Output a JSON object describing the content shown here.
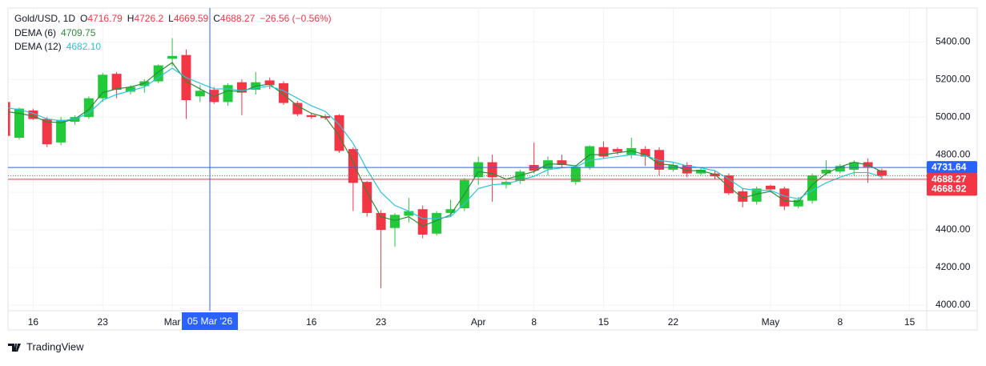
{
  "chart_data": {
    "type": "candlestick",
    "title": "Gold/USD, 1D",
    "ohlc_labels": [
      "O",
      "H",
      "L",
      "C"
    ],
    "change": "−26.56 (−0.56%)",
    "up_color": "#22c93a",
    "down_color": "#f23645",
    "categories": [
      null,
      null,
      "16",
      null,
      null,
      null,
      null,
      "23",
      null,
      null,
      null,
      null,
      "Mar",
      null,
      null,
      null,
      null,
      null,
      null,
      null,
      null,
      null,
      "16",
      null,
      null,
      null,
      null,
      "23",
      null,
      null,
      null,
      null,
      null,
      null,
      "Apr",
      null,
      null,
      null,
      "8",
      null,
      null,
      null,
      null,
      "15",
      null,
      null,
      null,
      null,
      "22",
      null,
      null,
      null,
      null,
      null,
      null,
      "May",
      null,
      null,
      null,
      null,
      "8",
      null,
      null,
      null,
      null,
      "15"
    ],
    "open": [
      5080,
      4890,
      5035,
      4990,
      4865,
      4975,
      5000,
      5100,
      5230,
      5135,
      5165,
      5190,
      5310,
      5330,
      5110,
      5145,
      5080,
      5185,
      5145,
      5195,
      5180,
      5075,
      5010,
      5005,
      5010,
      4830,
      4655,
      4490,
      4410,
      4475,
      4510,
      4380,
      4490,
      4515,
      4680,
      4760,
      4640,
      4660,
      4745,
      4725,
      4770,
      4655,
      4735,
      4840,
      4830,
      4800,
      4830,
      4825,
      4720,
      4745,
      4700,
      4700,
      4690,
      4605,
      4550,
      4635,
      4620,
      4525,
      4555,
      4700,
      4710,
      4720,
      4760,
      4716.79,
      null,
      null
    ],
    "high": [
      5100,
      5050,
      5045,
      5000,
      5000,
      5010,
      5110,
      5235,
      5240,
      5170,
      5200,
      5280,
      5420,
      5360,
      5170,
      5160,
      5180,
      5200,
      5240,
      5210,
      5190,
      5085,
      5020,
      5015,
      5015,
      4840,
      4660,
      4505,
      4490,
      4570,
      4530,
      4500,
      4560,
      4675,
      4790,
      4800,
      4665,
      4720,
      4865,
      4790,
      4800,
      4745,
      4850,
      4870,
      4840,
      4890,
      4845,
      4840,
      4760,
      4760,
      4730,
      4715,
      4700,
      4620,
      4630,
      4640,
      4630,
      4575,
      4700,
      4770,
      4750,
      4770,
      4780,
      4726.2,
      null,
      null
    ],
    "low": [
      4880,
      4880,
      4985,
      4840,
      4850,
      4960,
      4990,
      5080,
      5100,
      5120,
      5130,
      5180,
      5270,
      4990,
      5080,
      5070,
      5060,
      5010,
      5120,
      5150,
      5065,
      5005,
      4990,
      4985,
      4810,
      4500,
      4470,
      4090,
      4310,
      4440,
      4355,
      4370,
      4470,
      4500,
      4640,
      4550,
      4620,
      4645,
      4700,
      4690,
      4730,
      4640,
      4720,
      4780,
      4800,
      4780,
      4740,
      4690,
      4710,
      4680,
      4690,
      4670,
      4585,
      4520,
      4535,
      4600,
      4505,
      4515,
      4540,
      4690,
      4700,
      4690,
      4650,
      4669.59,
      null,
      null
    ],
    "close": [
      4900,
      5045,
      4990,
      4855,
      4985,
      5000,
      5100,
      5225,
      5145,
      5160,
      5190,
      5275,
      5325,
      5090,
      5140,
      5080,
      5170,
      5130,
      5185,
      5170,
      5075,
      5015,
      5000,
      4995,
      4820,
      4650,
      4490,
      4400,
      4480,
      4500,
      4375,
      4490,
      4510,
      4665,
      4760,
      4680,
      4655,
      4710,
      4715,
      4770,
      4745,
      4735,
      4845,
      4790,
      4815,
      4835,
      4790,
      4720,
      4745,
      4700,
      4720,
      4685,
      4595,
      4550,
      4620,
      4615,
      4525,
      4560,
      4690,
      4720,
      4740,
      4760,
      4735,
      4688.27,
      null,
      null
    ],
    "series": [
      {
        "name": "DEMA (6)",
        "color": "#2e8b3a",
        "legend_value": "4709.75",
        "values": [
          5030,
          5020,
          5005,
          4975,
          4970,
          4990,
          5040,
          5130,
          5150,
          5160,
          5180,
          5240,
          5290,
          5190,
          5150,
          5110,
          5140,
          5135,
          5165,
          5175,
          5120,
          5060,
          5020,
          5000,
          4900,
          4760,
          4600,
          4470,
          4450,
          4470,
          4420,
          4450,
          4480,
          4590,
          4710,
          4700,
          4670,
          4690,
          4710,
          4750,
          4750,
          4740,
          4800,
          4800,
          4810,
          4820,
          4800,
          4750,
          4745,
          4715,
          4715,
          4695,
          4630,
          4570,
          4590,
          4605,
          4555,
          4550,
          4640,
          4700,
          4735,
          4760,
          4745,
          4709.75,
          null,
          null
        ]
      },
      {
        "name": "DEMA (12)",
        "color": "#26c6da",
        "legend_value": "4682.10",
        "values": [
          5050,
          5040,
          5020,
          4990,
          4980,
          4990,
          5020,
          5090,
          5120,
          5140,
          5160,
          5210,
          5260,
          5210,
          5180,
          5150,
          5150,
          5140,
          5155,
          5165,
          5140,
          5100,
          5060,
          5030,
          4960,
          4860,
          4720,
          4600,
          4530,
          4500,
          4460,
          4460,
          4470,
          4540,
          4620,
          4640,
          4645,
          4665,
          4685,
          4720,
          4730,
          4735,
          4770,
          4780,
          4790,
          4800,
          4795,
          4770,
          4760,
          4740,
          4730,
          4715,
          4670,
          4620,
          4610,
          4610,
          4580,
          4565,
          4610,
          4650,
          4680,
          4705,
          4705,
          4682.1,
          null,
          null
        ]
      }
    ],
    "ylim": [
      3970,
      5580
    ],
    "yticks": [
      {
        "value": 4000,
        "label": "4000.00"
      },
      {
        "value": 4200,
        "label": "4200.00"
      },
      {
        "value": 4400,
        "label": "4400.00"
      },
      {
        "value": 4600,
        "label": "4600.00"
      },
      {
        "value": 4800,
        "label": "4800.00"
      },
      {
        "value": 5000,
        "label": "5000.00"
      },
      {
        "value": 5200,
        "label": "5200.00"
      },
      {
        "value": 5400,
        "label": "5400.00"
      }
    ],
    "grid": true,
    "price_lines": [
      {
        "value": 4731.64,
        "color": "#2962ff",
        "style": "solid"
      },
      {
        "value": 4688.27,
        "color": "#f23645",
        "style": "dotted"
      },
      {
        "value": 4668.92,
        "color": "#f23645",
        "style": "solid"
      }
    ],
    "crosshair_label": "05 Mar '26",
    "brand": "TradingView"
  }
}
